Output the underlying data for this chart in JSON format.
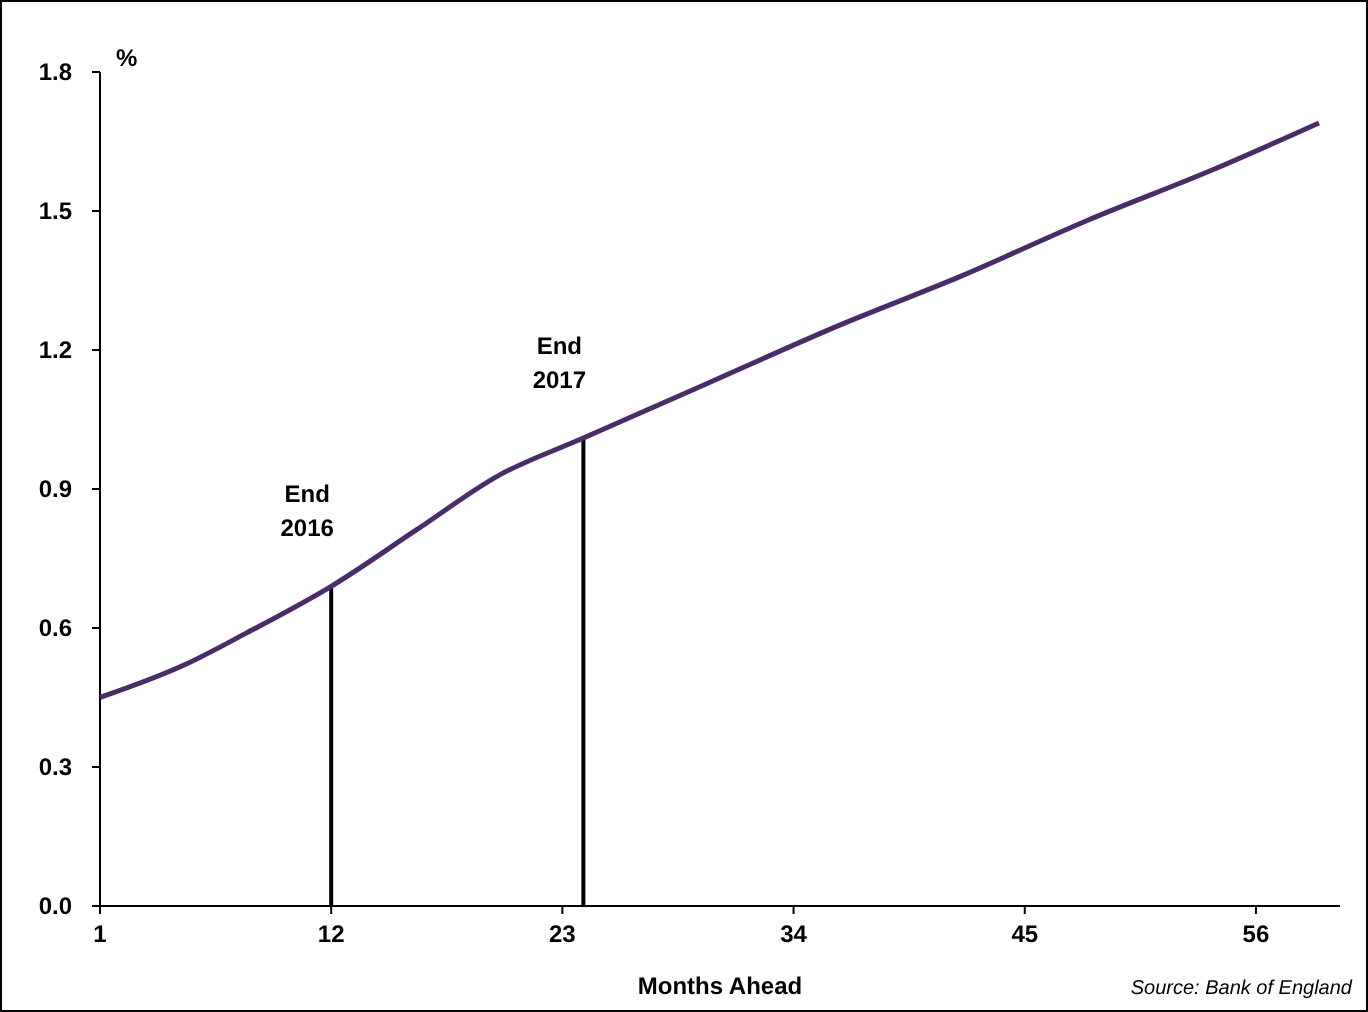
{
  "chart_data": {
    "type": "line",
    "xlabel": "Months Ahead",
    "ylabel": "%",
    "annotations": [
      "Source: Bank of England"
    ],
    "series": [
      {
        "color": "#4b2c6b",
        "x": [
          1,
          5,
          8,
          12,
          16,
          20,
          24,
          30,
          36,
          42,
          48,
          54,
          59
        ],
        "values": [
          0.45,
          0.52,
          0.59,
          0.69,
          0.81,
          0.93,
          1.01,
          1.13,
          1.25,
          1.36,
          1.48,
          1.59,
          1.69
        ]
      }
    ],
    "xlim": [
      1,
      60
    ],
    "xticks": [
      1,
      12,
      23,
      34,
      45,
      56
    ],
    "ylim": [
      0,
      1.8
    ],
    "yticks": [
      {
        "value": 0,
        "label": "0.0"
      },
      {
        "value": 0.3,
        "label": "0.3"
      },
      {
        "value": 0.6,
        "label": "0.6"
      },
      {
        "value": 0.9,
        "label": "0.9"
      },
      {
        "value": 1.2,
        "label": "1.2"
      },
      {
        "value": 1.5,
        "label": "1.5"
      },
      {
        "value": 1.8,
        "label": "1.8"
      }
    ],
    "ref_lines": [
      {
        "axis": "x",
        "value": 12,
        "label": "End\n2016",
        "color": "#000000"
      },
      {
        "axis": "x",
        "value": 24,
        "label": "End\n2017",
        "color": "#000000"
      }
    ],
    "grid": false,
    "marker": "none",
    "line_style": "solid"
  }
}
